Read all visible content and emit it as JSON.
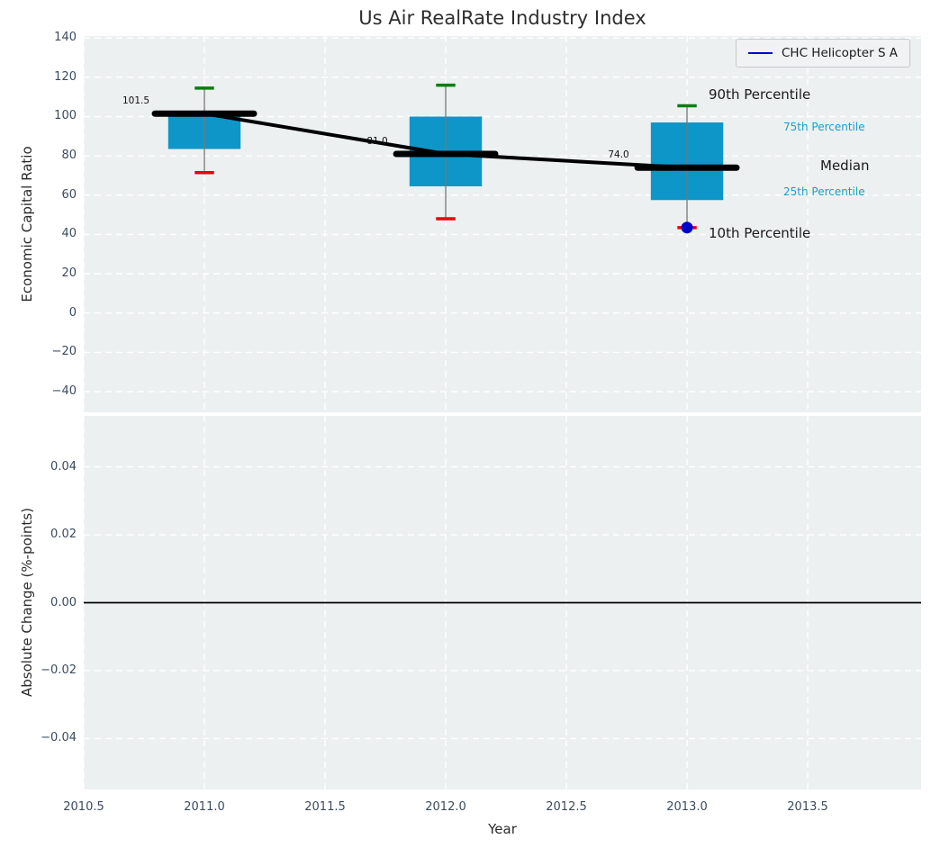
{
  "colors": {
    "plot_bg": "#ecf0f1",
    "grid": "#ffffff",
    "box_fill": "#0e96c8",
    "cap_90": "#0a7d12",
    "cap_10": "#e8000b",
    "whisker": "#777777",
    "median": "#000000",
    "company_point": "#0000cd",
    "tick_text": "#3b4a5e",
    "percentile_small_text": "#18a0cc",
    "zero_line": "#000000"
  },
  "legend": {
    "label": "CHC Helicopter S A"
  },
  "chart_data": {
    "type": "boxplot",
    "title": "Us Air RealRate Industry Index",
    "xlabel": "Year",
    "grid": "white-dashed",
    "legend_position": "upper-right",
    "xlim": [
      2010.5,
      2013.97
    ],
    "xticks": [
      {
        "v": 2010.5,
        "label": "2010.5"
      },
      {
        "v": 2011.0,
        "label": "2011.0"
      },
      {
        "v": 2011.5,
        "label": "2011.5"
      },
      {
        "v": 2012.0,
        "label": "2012.0"
      },
      {
        "v": 2012.5,
        "label": "2012.5"
      },
      {
        "v": 2013.0,
        "label": "2013.0"
      },
      {
        "v": 2013.5,
        "label": "2013.5"
      }
    ],
    "box_width_years": 0.3,
    "median_bar_width_years": 0.41,
    "cap_width_years": 0.08,
    "panels": [
      {
        "name": "economic-capital-ratio",
        "ylabel": "Economic Capital Ratio",
        "ylim": [
          -50.5,
          141
        ],
        "yticks": [
          {
            "v": 140,
            "label": "140"
          },
          {
            "v": 120,
            "label": "120"
          },
          {
            "v": 100,
            "label": "100"
          },
          {
            "v": 80,
            "label": "80"
          },
          {
            "v": 60,
            "label": "60"
          },
          {
            "v": 40,
            "label": "40"
          },
          {
            "v": 20,
            "label": "20"
          },
          {
            "v": 0,
            "label": "0"
          },
          {
            "v": -20,
            "label": "−20"
          },
          {
            "v": -40,
            "label": "−40"
          }
        ],
        "boxes": [
          {
            "x": 2011,
            "p10": 71.5,
            "p25": 83.5,
            "median": 101.5,
            "p75": 100.0,
            "p90": 114.5,
            "median_label": "101.5"
          },
          {
            "x": 2012,
            "p10": 48.0,
            "p25": 64.5,
            "median": 81.0,
            "p75": 100.0,
            "p90": 116.0,
            "median_label": "81.0"
          },
          {
            "x": 2013,
            "p10": 43.5,
            "p25": 57.5,
            "median": 74.0,
            "p75": 97.0,
            "p90": 105.5,
            "median_label": "74.0"
          }
        ],
        "median_line": [
          [
            2011,
            101.5
          ],
          [
            2012,
            81.0
          ],
          [
            2013,
            74.0
          ]
        ],
        "company_point": {
          "x": 2013,
          "y": 43.5,
          "series": "CHC Helicopter S A"
        },
        "percentile_labels": {
          "p90": "90th Percentile",
          "p75": "75th Percentile",
          "median": "Median",
          "p25": "25th Percentile",
          "p10": "10th Percentile"
        }
      },
      {
        "name": "absolute-change",
        "ylabel": "Absolute Change (%-points)",
        "ylim": [
          -0.055,
          0.055
        ],
        "yticks": [
          {
            "v": 0.04,
            "label": "0.04"
          },
          {
            "v": 0.02,
            "label": "0.02"
          },
          {
            "v": 0.0,
            "label": "0.00"
          },
          {
            "v": -0.02,
            "label": "−0.02"
          },
          {
            "v": -0.04,
            "label": "−0.04"
          }
        ],
        "zero_line": 0.0
      }
    ]
  }
}
